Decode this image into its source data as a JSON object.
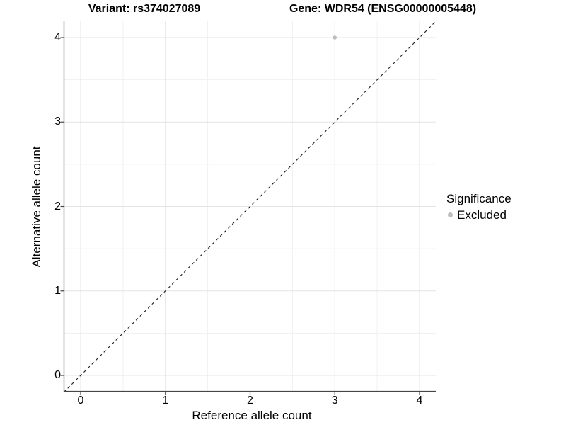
{
  "titles": {
    "variant": "Variant: rs374027089",
    "gene": "Gene: WDR54 (ENSG00000005448)"
  },
  "chart_data": {
    "type": "scatter",
    "title": "Variant: rs374027089    Gene: WDR54 (ENSG00000005448)",
    "xlabel": "Reference allele count",
    "ylabel": "Alternative allele count",
    "x_ticks": [
      0,
      1,
      2,
      3,
      4
    ],
    "y_ticks": [
      0,
      1,
      2,
      3,
      4
    ],
    "xlim": [
      -0.2,
      4.2
    ],
    "ylim": [
      -0.2,
      4.2
    ],
    "grid": "major+minor",
    "series": [
      {
        "name": "Excluded",
        "color": "#bdbdbd",
        "points": [
          {
            "x": 3,
            "y": 4
          }
        ]
      }
    ],
    "reference_line": {
      "kind": "identity y=x",
      "style": "dashed",
      "color": "#1a1a1a"
    },
    "legend": {
      "title": "Significance",
      "position": "right",
      "entries": [
        {
          "label": "Excluded",
          "color": "#bdbdbd"
        }
      ]
    },
    "colors": {
      "grid_major": "#e4e4e4",
      "grid_minor": "#f1f1f1",
      "axis_line": "#464646",
      "point": "#bdbdbd"
    }
  }
}
